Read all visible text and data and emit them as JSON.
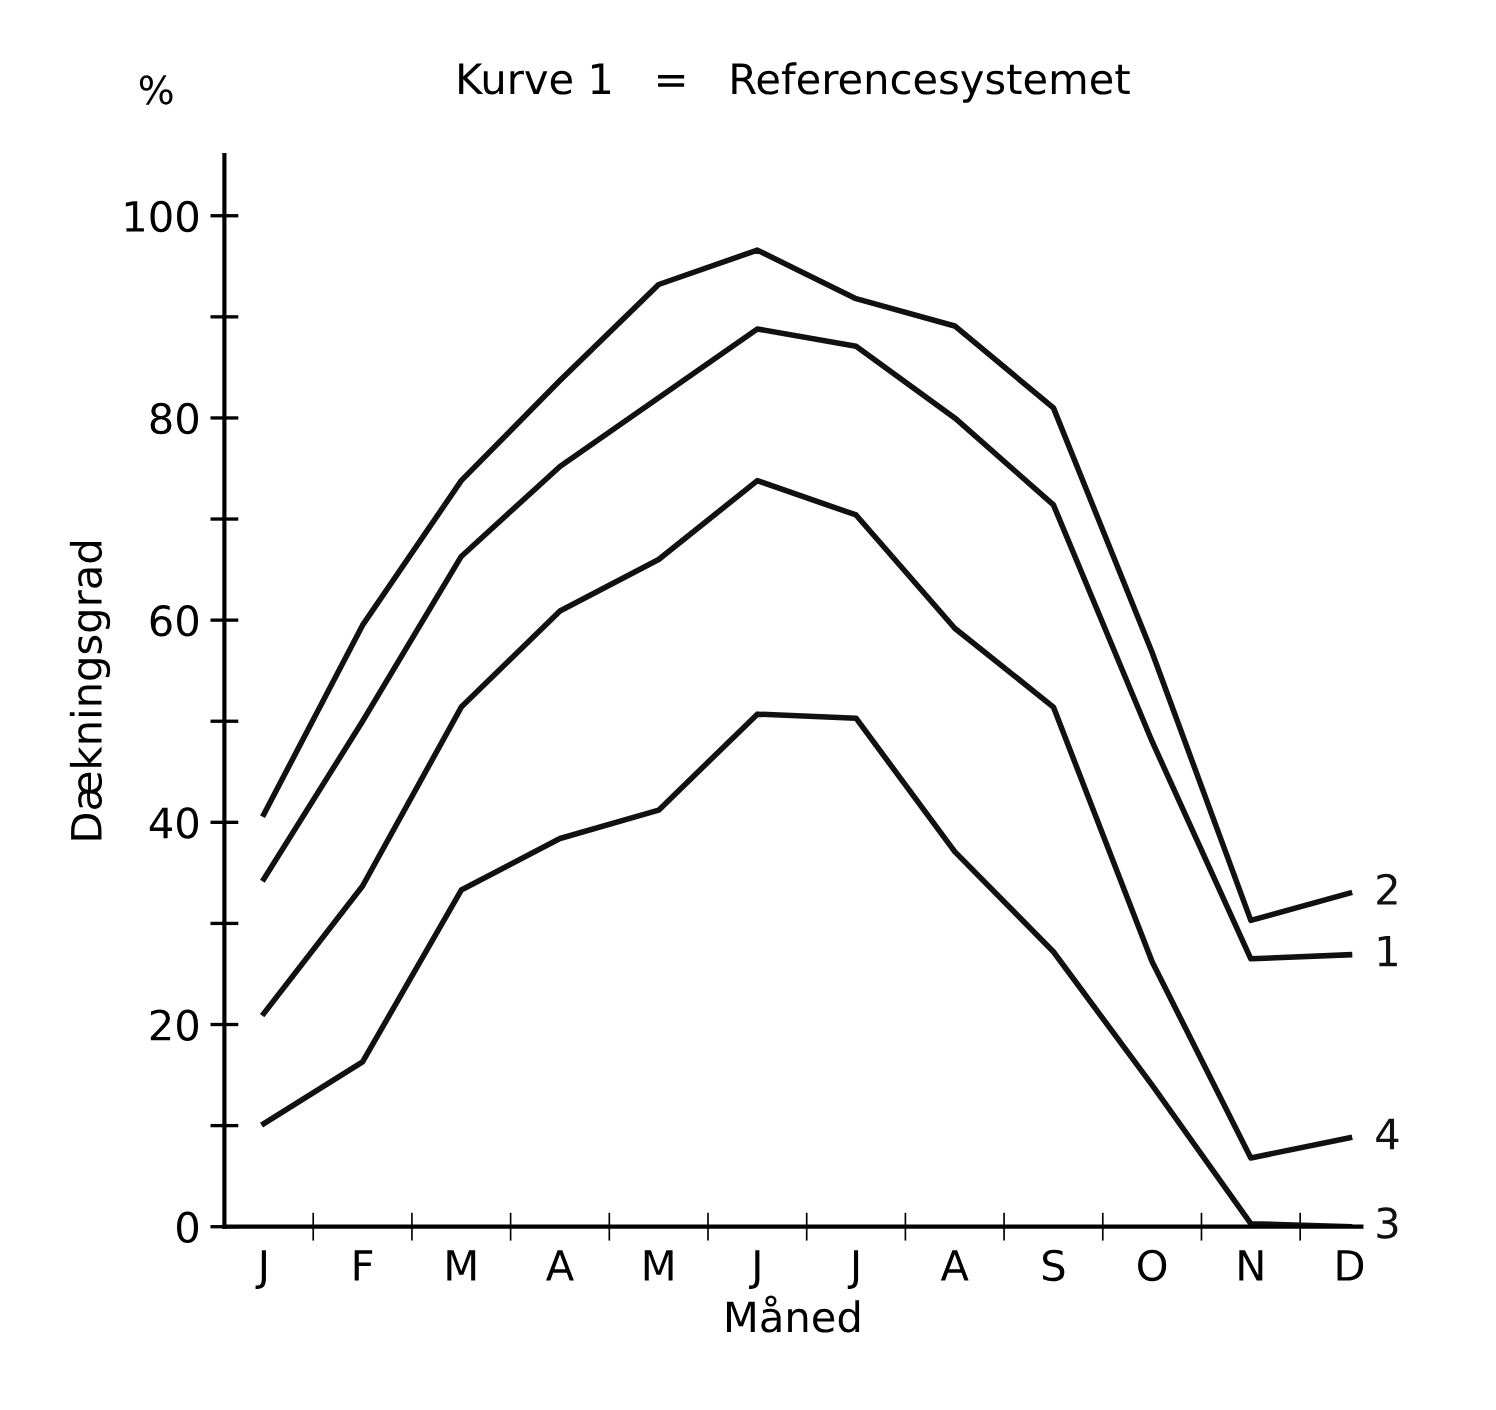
{
  "chart_data": {
    "type": "line",
    "title": "Kurve 1   =   Referencesystemet",
    "xlabel": "Måned",
    "ylabel": "Dækningsgrad",
    "annotations": [
      "%"
    ],
    "categories": [
      "J",
      "F",
      "M",
      "A",
      "M",
      "J",
      "J",
      "A",
      "S",
      "O",
      "N",
      "D"
    ],
    "ylim": [
      0,
      106
    ],
    "yticks": [
      0,
      {
        "value": 10,
        "label": null
      },
      20,
      {
        "value": 30,
        "label": null
      },
      40,
      {
        "value": 50,
        "label": null
      },
      60,
      {
        "value": 70,
        "label": null
      },
      80,
      {
        "value": 90,
        "label": null
      },
      100
    ],
    "grid": false,
    "legend": false,
    "marker": "none",
    "line_style": "solid",
    "series": [
      {
        "name": "2",
        "color": "#111111",
        "values": [
          40.8,
          59.5,
          73.8,
          83.7,
          93.2,
          96.6,
          91.8,
          89.1,
          81,
          56.8,
          30.3,
          33
        ]
      },
      {
        "name": "1",
        "color": "#111111",
        "values": [
          34.4,
          50,
          66.3,
          75.2,
          82,
          88.8,
          87.1,
          80,
          71.4,
          48,
          26.5,
          26.9
        ]
      },
      {
        "name": "4",
        "color": "#111111",
        "values": [
          21.1,
          33.7,
          51.4,
          60.9,
          66,
          73.8,
          70.4,
          59.2,
          51.4,
          26.2,
          6.8,
          8.8
        ]
      },
      {
        "name": "3",
        "color": "#111111",
        "values": [
          10.2,
          16.3,
          33.3,
          38.4,
          41.2,
          50.7,
          50.3,
          37.1,
          27.2,
          14,
          0.3,
          0
        ]
      }
    ]
  }
}
